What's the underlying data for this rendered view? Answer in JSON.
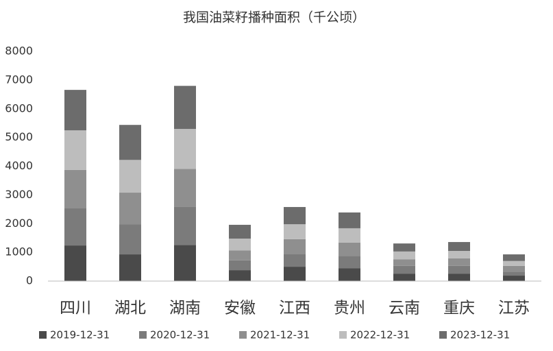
{
  "chart_data": {
    "type": "stacked_bar",
    "title": "我国油菜籽播种面积（千公顷）",
    "categories": [
      "四川",
      "湖北",
      "湖南",
      "安徽",
      "江西",
      "贵州",
      "云南",
      "重庆",
      "江苏"
    ],
    "series": [
      {
        "name": "2019-12-31",
        "color": "#4a4a4a",
        "values": [
          1240,
          930,
          1260,
          380,
          500,
          450,
          260,
          260,
          190
        ]
      },
      {
        "name": "2020-12-31",
        "color": "#7b7b7b",
        "values": [
          1310,
          1050,
          1320,
          340,
          450,
          430,
          270,
          270,
          140
        ]
      },
      {
        "name": "2021-12-31",
        "color": "#8f8f8f",
        "values": [
          1320,
          1100,
          1330,
          350,
          510,
          460,
          230,
          260,
          200
        ]
      },
      {
        "name": "2022-12-31",
        "color": "#bdbdbd",
        "values": [
          1380,
          1140,
          1390,
          410,
          520,
          500,
          270,
          260,
          170
        ]
      },
      {
        "name": "2023-12-31",
        "color": "#6c6c6c",
        "values": [
          1410,
          1220,
          1500,
          480,
          600,
          550,
          280,
          310,
          230
        ]
      }
    ],
    "ylim": [
      0,
      8000
    ],
    "yticks": [
      0,
      1000,
      2000,
      3000,
      4000,
      5000,
      6000,
      7000,
      8000
    ]
  }
}
